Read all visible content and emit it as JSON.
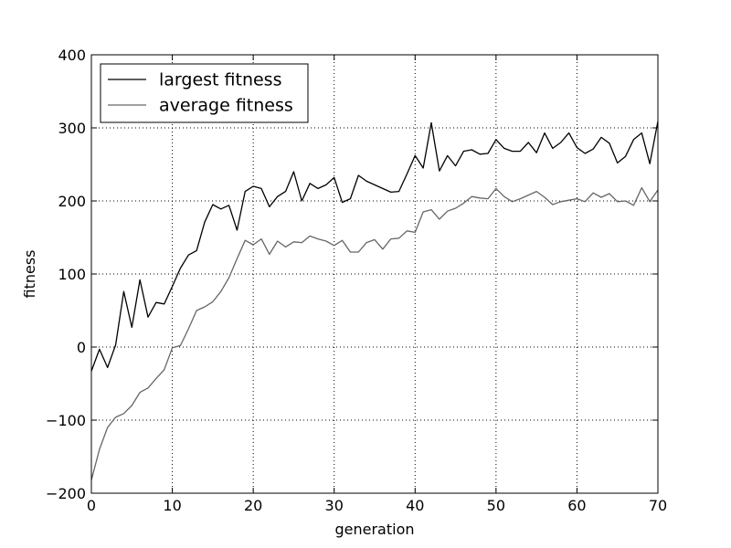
{
  "chart_data": {
    "type": "line",
    "title": "",
    "xlabel": "generation",
    "ylabel": "fitness",
    "xlim": [
      0,
      70
    ],
    "ylim": [
      -200,
      400
    ],
    "xticks": [
      0,
      10,
      20,
      30,
      40,
      50,
      60,
      70
    ],
    "xtick_labels": [
      "0",
      "10",
      "20",
      "30",
      "40",
      "50",
      "60",
      "70"
    ],
    "yticks": [
      -200,
      -100,
      0,
      100,
      200,
      300,
      400
    ],
    "ytick_labels": [
      "−200",
      "−100",
      "0",
      "100",
      "200",
      "300",
      "400"
    ],
    "grid": true,
    "legend_position": "top-left",
    "x": [
      0,
      1,
      2,
      3,
      4,
      5,
      6,
      7,
      8,
      9,
      10,
      11,
      12,
      13,
      14,
      15,
      16,
      17,
      18,
      19,
      20,
      21,
      22,
      23,
      24,
      25,
      26,
      27,
      28,
      29,
      30,
      31,
      32,
      33,
      34,
      35,
      36,
      37,
      38,
      39,
      40,
      41,
      42,
      43,
      44,
      45,
      46,
      47,
      48,
      49,
      50,
      51,
      52,
      53,
      54,
      55,
      56,
      57,
      58,
      59,
      60,
      61,
      62,
      63,
      64,
      65,
      66,
      67,
      68,
      69,
      70
    ],
    "series": [
      {
        "name": "largest fitness",
        "color": "#000000",
        "values": [
          -33,
          -3,
          -28,
          3,
          76,
          27,
          92,
          41,
          61,
          59,
          83,
          108,
          126,
          132,
          171,
          195,
          189,
          194,
          160,
          213,
          220,
          217,
          192,
          206,
          213,
          240,
          200,
          224,
          217,
          222,
          232,
          198,
          203,
          235,
          227,
          222,
          217,
          212,
          213,
          237,
          262,
          245,
          307,
          241,
          262,
          248,
          268,
          270,
          264,
          265,
          284,
          272,
          268,
          268,
          280,
          266,
          293,
          272,
          280,
          293,
          273,
          265,
          271,
          287,
          279,
          252,
          261,
          284,
          293,
          251,
          309
        ]
      },
      {
        "name": "average fitness",
        "color": "#666666",
        "values": [
          -182,
          -140,
          -110,
          -96,
          -91,
          -80,
          -62,
          -56,
          -43,
          -31,
          -1,
          2,
          25,
          50,
          55,
          62,
          76,
          95,
          121,
          146,
          140,
          148,
          127,
          145,
          137,
          144,
          143,
          152,
          148,
          145,
          139,
          146,
          130,
          130,
          143,
          147,
          134,
          148,
          149,
          159,
          157,
          185,
          188,
          175,
          186,
          190,
          197,
          206,
          204,
          203,
          217,
          206,
          199,
          203,
          208,
          213,
          205,
          195,
          199,
          201,
          203,
          199,
          211,
          205,
          210,
          199,
          200,
          194,
          218,
          199,
          215
        ]
      }
    ]
  }
}
